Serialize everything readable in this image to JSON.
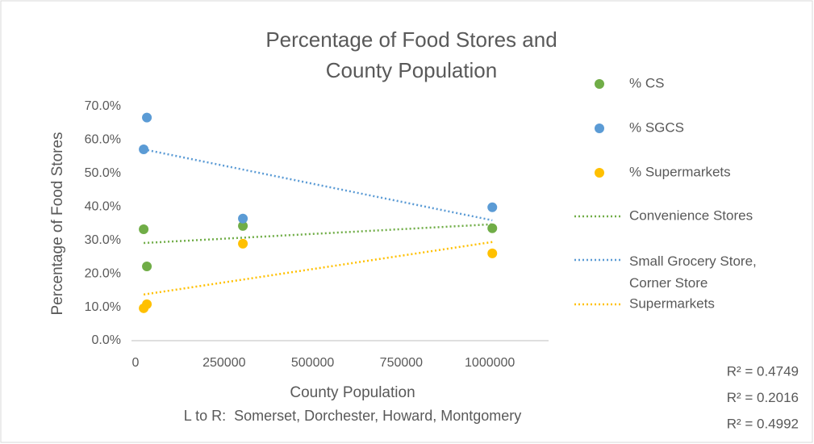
{
  "chart_data": {
    "type": "scatter",
    "title": "Percentage of Food Stores and County Population",
    "subtitle": "L to R:  Somerset, Dorchester, Howard, Montgomery",
    "x_label": "County Population",
    "y_label": "Percentage of Food Stores",
    "xlim": [
      0,
      1200000
    ],
    "xticks": [
      0,
      250000,
      500000,
      750000,
      1000000
    ],
    "ylim": [
      0,
      70
    ],
    "yticks": [
      {
        "value": 0,
        "label": "0.0%"
      },
      {
        "value": 10,
        "label": "10.0%"
      },
      {
        "value": 20,
        "label": "20.0%"
      },
      {
        "value": 30,
        "label": "30.0%"
      },
      {
        "value": 40,
        "label": "40.0%"
      },
      {
        "value": 50,
        "label": "50.0%"
      },
      {
        "value": 60,
        "label": "60.0%"
      },
      {
        "value": 70,
        "label": "70.0%"
      }
    ],
    "grid": false,
    "series": [
      {
        "name": "% CS",
        "type": "scatter",
        "color": "#70ad47",
        "x": [
          23000,
          32000,
          303000,
          1007000
        ],
        "values": [
          33.3,
          22.2,
          34.3,
          33.6
        ]
      },
      {
        "name": "% SGCS",
        "type": "scatter",
        "color": "#5b9bd5",
        "x": [
          23000,
          32000,
          303000,
          1007000
        ],
        "values": [
          57.2,
          66.7,
          36.5,
          39.9
        ]
      },
      {
        "name": "% Supermarkets",
        "type": "scatter",
        "color": "#ffc000",
        "x": [
          23000,
          32000,
          303000,
          1007000
        ],
        "values": [
          9.7,
          10.9,
          29.0,
          26.1
        ]
      },
      {
        "name": "Convenience Stores",
        "type": "trendline",
        "color": "#70ad47",
        "x": [
          23000,
          1007000
        ],
        "values": [
          29.2,
          34.8
        ]
      },
      {
        "name": "Small Grocery Store, Corner Store",
        "type": "trendline",
        "color": "#5b9bd5",
        "x": [
          23000,
          1007000
        ],
        "values": [
          57.2,
          36.0
        ]
      },
      {
        "name": "Supermarkets",
        "type": "trendline",
        "color": "#ffc000",
        "x": [
          23000,
          1007000
        ],
        "values": [
          13.8,
          29.5
        ]
      }
    ],
    "annotations": [
      "R² = 0.4749",
      "R² = 0.2016",
      "R² = 0.4992"
    ]
  }
}
